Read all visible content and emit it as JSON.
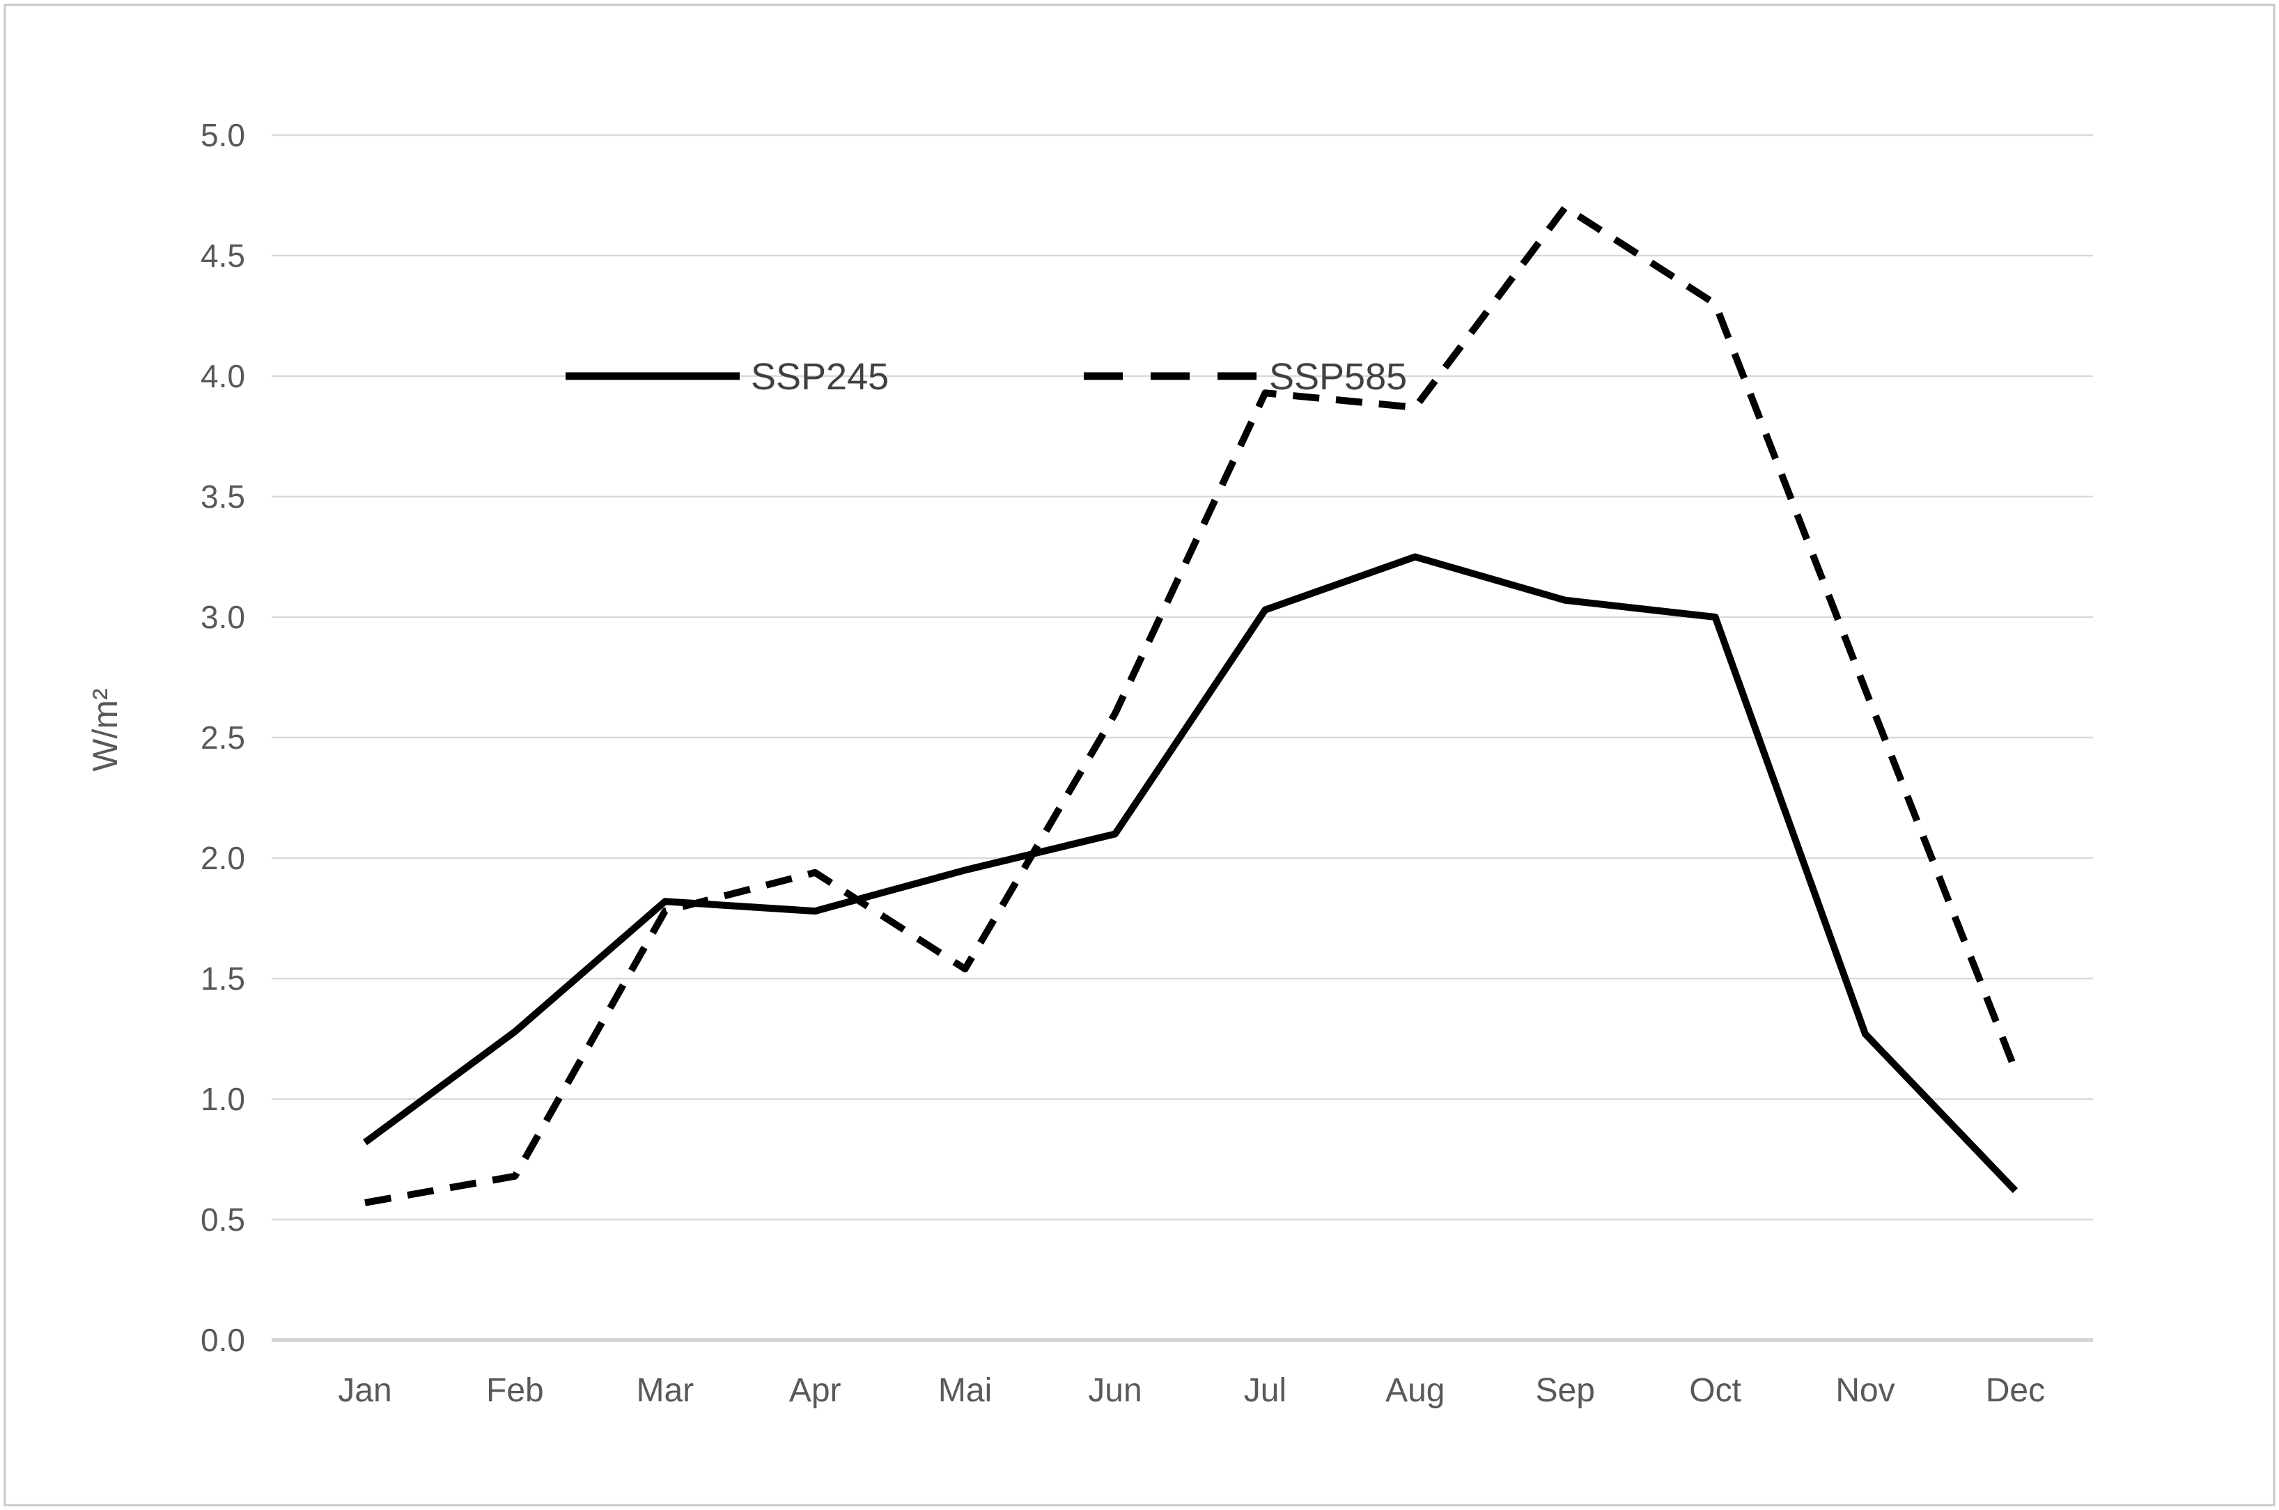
{
  "chart_data": {
    "type": "line",
    "title": "",
    "xlabel": "",
    "ylabel": "W/m²",
    "categories": [
      "Jan",
      "Feb",
      "Mar",
      "Apr",
      "Mai",
      "Jun",
      "Jul",
      "Aug",
      "Sep",
      "Oct",
      "Nov",
      "Dec"
    ],
    "series": [
      {
        "name": "SSP245",
        "style": "solid",
        "values": [
          0.82,
          1.28,
          1.82,
          1.78,
          1.95,
          2.1,
          3.03,
          3.25,
          3.07,
          3.0,
          1.27,
          0.62
        ]
      },
      {
        "name": "SSP585",
        "style": "dashed",
        "values": [
          0.57,
          0.68,
          1.78,
          1.94,
          1.54,
          2.6,
          3.93,
          3.87,
          4.7,
          4.3,
          2.7,
          1.12
        ]
      }
    ],
    "ylim": [
      0.0,
      5.0
    ],
    "ytick_step": 0.5,
    "ytick_labels": [
      "0.0",
      "0.5",
      "1.0",
      "1.5",
      "2.0",
      "2.5",
      "3.0",
      "3.5",
      "4.0",
      "4.5",
      "5.0"
    ],
    "grid": "horizontal",
    "legend_position": "inside-top-left",
    "colors": {
      "line": "#000000",
      "grid": "#d9d9d9",
      "axis": "#d6d6d6",
      "text": "#595959",
      "legend_text": "#404040",
      "border": "#c9c9c9",
      "background": "#ffffff"
    }
  }
}
